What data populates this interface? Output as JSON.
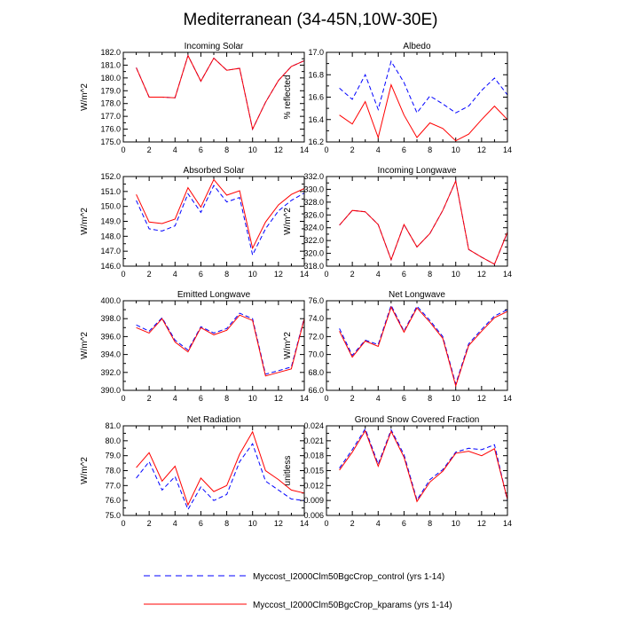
{
  "figure": {
    "title": "Mediterranean (34-45N,10W-30E)"
  },
  "legend": {
    "placement": "bottom-center",
    "entries": [
      {
        "label": "Myccost_I2000Clm50BgcCrop_control (yrs 1-14)",
        "color": "#0000ff",
        "dash": "dashed"
      },
      {
        "label": "Myccost_I2000Clm50BgcCrop_kparams (yrs 1-14)",
        "color": "#ff0000",
        "dash": "solid"
      }
    ]
  },
  "chart_data": [
    {
      "type": "line",
      "title": "Incoming Solar",
      "ylabel": "W/m^2",
      "xlim": [
        0,
        14
      ],
      "ylim": [
        175,
        182
      ],
      "x_ticks": [
        0,
        2,
        4,
        6,
        8,
        10,
        12,
        14
      ],
      "y_ticks": [
        175,
        176,
        177,
        178,
        179,
        180,
        181,
        182
      ],
      "y_tick_labels": [
        "175.0",
        "176.0",
        "177.0",
        "178.0",
        "179.0",
        "180.0",
        "181.0",
        "182.0"
      ],
      "x": [
        1,
        2,
        3,
        4,
        5,
        6,
        7,
        8,
        9,
        10,
        11,
        12,
        13,
        14
      ],
      "series": [
        {
          "values": [
            180.8,
            178.5,
            178.5,
            178.45,
            181.75,
            179.75,
            181.55,
            180.6,
            180.75,
            176.0,
            178.1,
            179.8,
            180.9,
            181.35
          ]
        },
        {
          "values": [
            180.8,
            178.5,
            178.5,
            178.45,
            181.75,
            179.75,
            181.55,
            180.6,
            180.75,
            176.0,
            178.1,
            179.8,
            180.9,
            181.35
          ]
        }
      ]
    },
    {
      "type": "line",
      "title": "Albedo",
      "ylabel": "% reflected",
      "xlim": [
        0,
        14
      ],
      "ylim": [
        16.2,
        17.0
      ],
      "x_ticks": [
        0,
        2,
        4,
        6,
        8,
        10,
        12,
        14
      ],
      "y_ticks": [
        16.2,
        16.4,
        16.6,
        16.8,
        17.0
      ],
      "y_tick_labels": [
        "16.2",
        "16.4",
        "16.6",
        "16.8",
        "17.0"
      ],
      "x": [
        1,
        2,
        3,
        4,
        5,
        6,
        7,
        8,
        9,
        10,
        11,
        12,
        13,
        14
      ],
      "series": [
        {
          "values": [
            16.68,
            16.58,
            16.8,
            16.49,
            16.92,
            16.73,
            16.46,
            16.61,
            16.54,
            16.46,
            16.52,
            16.66,
            16.77,
            16.62
          ]
        },
        {
          "values": [
            16.44,
            16.36,
            16.56,
            16.24,
            16.71,
            16.44,
            16.24,
            16.37,
            16.32,
            16.21,
            16.27,
            16.4,
            16.52,
            16.4
          ]
        }
      ]
    },
    {
      "type": "line",
      "title": "Absorbed Solar",
      "ylabel": "W/m^2",
      "xlim": [
        0,
        14
      ],
      "ylim": [
        146,
        152
      ],
      "x_ticks": [
        0,
        2,
        4,
        6,
        8,
        10,
        12,
        14
      ],
      "y_ticks": [
        146,
        147,
        148,
        149,
        150,
        151,
        152
      ],
      "y_tick_labels": [
        "146.0",
        "147.0",
        "148.0",
        "149.0",
        "150.0",
        "151.0",
        "152.0"
      ],
      "x": [
        1,
        2,
        3,
        4,
        5,
        6,
        7,
        8,
        9,
        10,
        11,
        12,
        13,
        14
      ],
      "series": [
        {
          "values": [
            150.4,
            148.5,
            148.35,
            148.7,
            150.85,
            149.6,
            151.4,
            150.3,
            150.6,
            146.75,
            148.5,
            149.7,
            150.4,
            150.9
          ]
        },
        {
          "values": [
            150.8,
            148.95,
            148.85,
            149.15,
            151.25,
            149.95,
            151.8,
            150.75,
            151.05,
            147.2,
            148.95,
            150.1,
            150.8,
            151.2
          ]
        }
      ]
    },
    {
      "type": "line",
      "title": "Incoming Longwave",
      "ylabel": "W/m^2",
      "xlim": [
        0,
        14
      ],
      "ylim": [
        318,
        332
      ],
      "x_ticks": [
        0,
        2,
        4,
        6,
        8,
        10,
        12,
        14
      ],
      "y_ticks": [
        318,
        320,
        322,
        324,
        326,
        328,
        330,
        332
      ],
      "y_tick_labels": [
        "318.0",
        "320.0",
        "322.0",
        "324.0",
        "326.0",
        "328.0",
        "330.0",
        "332.0"
      ],
      "x": [
        1,
        2,
        3,
        4,
        5,
        6,
        7,
        8,
        9,
        10,
        11,
        12,
        13,
        14
      ],
      "series": [
        {
          "values": [
            324.4,
            326.7,
            326.5,
            324.5,
            319.0,
            324.5,
            321.0,
            323.1,
            326.7,
            331.3,
            320.6,
            319.4,
            318.3,
            323.3
          ]
        },
        {
          "values": [
            324.4,
            326.7,
            326.5,
            324.5,
            319.0,
            324.5,
            321.0,
            323.1,
            326.7,
            331.3,
            320.6,
            319.4,
            318.3,
            323.3
          ]
        }
      ]
    },
    {
      "type": "line",
      "title": "Emitted Longwave",
      "ylabel": "W/m^2",
      "xlim": [
        0,
        14
      ],
      "ylim": [
        390,
        400
      ],
      "x_ticks": [
        0,
        2,
        4,
        6,
        8,
        10,
        12,
        14
      ],
      "y_ticks": [
        390,
        392,
        394,
        396,
        398,
        400
      ],
      "y_tick_labels": [
        "390.0",
        "392.0",
        "394.0",
        "396.0",
        "398.0",
        "400.0"
      ],
      "x": [
        1,
        2,
        3,
        4,
        5,
        6,
        7,
        8,
        9,
        10,
        11,
        12,
        13,
        14
      ],
      "series": [
        {
          "values": [
            397.3,
            396.6,
            398.1,
            395.6,
            394.5,
            397.1,
            396.4,
            396.9,
            398.6,
            398.0,
            391.8,
            392.2,
            392.6,
            398.1
          ]
        },
        {
          "values": [
            397.0,
            396.4,
            398.0,
            395.4,
            394.3,
            397.0,
            396.2,
            396.7,
            398.4,
            397.8,
            391.6,
            392.0,
            392.4,
            398.0
          ]
        }
      ]
    },
    {
      "type": "line",
      "title": "Net Longwave",
      "ylabel": "W/m^2",
      "xlim": [
        0,
        14
      ],
      "ylim": [
        66,
        76
      ],
      "x_ticks": [
        0,
        2,
        4,
        6,
        8,
        10,
        12,
        14
      ],
      "y_ticks": [
        66,
        68,
        70,
        72,
        74,
        76
      ],
      "y_tick_labels": [
        "66.0",
        "68.0",
        "70.0",
        "72.0",
        "74.0",
        "76.0"
      ],
      "x": [
        1,
        2,
        3,
        4,
        5,
        6,
        7,
        8,
        9,
        10,
        11,
        12,
        13,
        14
      ],
      "series": [
        {
          "values": [
            72.9,
            69.9,
            71.6,
            71.1,
            75.5,
            72.6,
            75.4,
            73.8,
            72.0,
            66.7,
            71.2,
            72.8,
            74.3,
            75.0
          ]
        },
        {
          "values": [
            72.6,
            69.7,
            71.5,
            70.9,
            75.3,
            72.5,
            75.2,
            73.6,
            71.8,
            66.5,
            71.0,
            72.6,
            74.1,
            74.8
          ]
        }
      ]
    },
    {
      "type": "line",
      "title": "Net Radiation",
      "ylabel": "W/m^2",
      "xlim": [
        0,
        14
      ],
      "ylim": [
        75,
        81
      ],
      "x_ticks": [
        0,
        2,
        4,
        6,
        8,
        10,
        12,
        14
      ],
      "y_ticks": [
        75,
        76,
        77,
        78,
        79,
        80,
        81
      ],
      "y_tick_labels": [
        "75.0",
        "76.0",
        "77.0",
        "78.0",
        "79.0",
        "80.0",
        "81.0"
      ],
      "x": [
        1,
        2,
        3,
        4,
        5,
        6,
        7,
        8,
        9,
        10,
        11,
        12,
        13,
        14
      ],
      "series": [
        {
          "values": [
            77.5,
            78.6,
            76.7,
            77.6,
            75.4,
            76.9,
            76.0,
            76.4,
            78.6,
            79.8,
            77.3,
            76.7,
            76.1,
            76.0
          ]
        },
        {
          "values": [
            78.2,
            79.2,
            77.3,
            78.3,
            75.7,
            77.5,
            76.6,
            77.0,
            79.1,
            80.6,
            78.0,
            77.4,
            76.7,
            76.5
          ]
        }
      ]
    },
    {
      "type": "line",
      "title": "Ground Snow Covered Fraction",
      "ylabel": "unitless",
      "xlim": [
        0,
        14
      ],
      "ylim": [
        0.006,
        0.024
      ],
      "x_ticks": [
        0,
        2,
        4,
        6,
        8,
        10,
        12,
        14
      ],
      "y_ticks": [
        0.006,
        0.009,
        0.012,
        0.015,
        0.018,
        0.021,
        0.024
      ],
      "y_tick_labels": [
        "0.006",
        "0.009",
        "0.012",
        "0.015",
        "0.018",
        "0.021",
        "0.024"
      ],
      "x": [
        1,
        2,
        3,
        4,
        5,
        6,
        7,
        8,
        9,
        10,
        11,
        12,
        13,
        14
      ],
      "series": [
        {
          "values": [
            0.0155,
            0.0192,
            0.0234,
            0.0163,
            0.0232,
            0.0182,
            0.0091,
            0.0132,
            0.0152,
            0.0187,
            0.0195,
            0.0192,
            0.0202,
            0.009
          ]
        },
        {
          "values": [
            0.0151,
            0.0187,
            0.023,
            0.0159,
            0.0229,
            0.0177,
            0.0088,
            0.0127,
            0.0149,
            0.0185,
            0.0189,
            0.018,
            0.0194,
            0.0092
          ]
        }
      ]
    }
  ]
}
